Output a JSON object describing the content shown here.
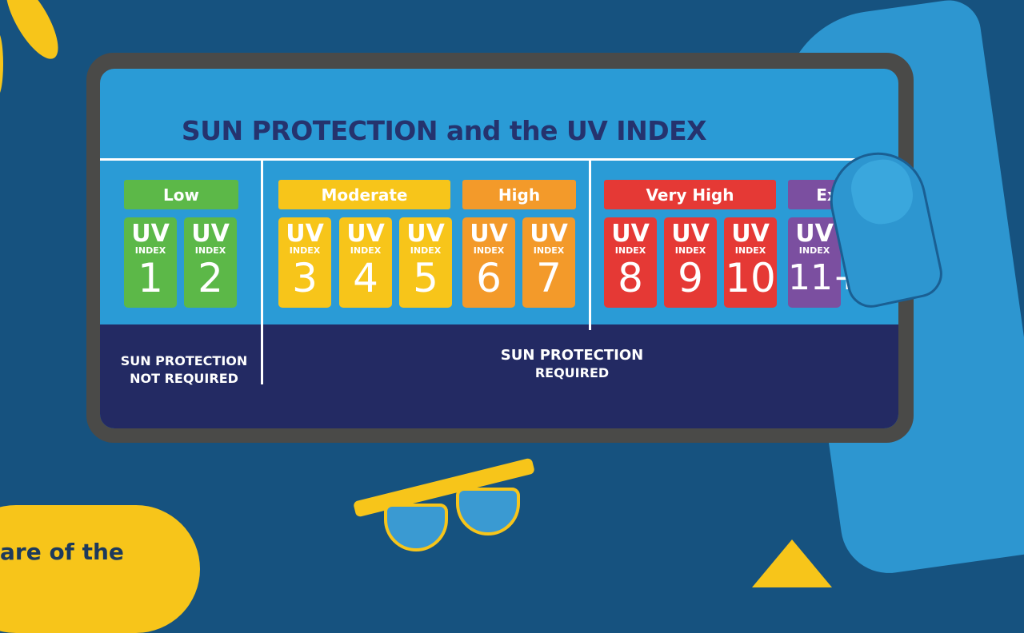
{
  "title": "SUN PROTECTION and the UV INDEX",
  "tile_uv": "UV",
  "tile_index": "INDEX",
  "categories": [
    {
      "label": "Low",
      "color": "#5cb848",
      "values": [
        "1",
        "2"
      ]
    },
    {
      "label": "Moderate",
      "color": "#f7c51a",
      "values": [
        "3",
        "4",
        "5"
      ]
    },
    {
      "label": "High",
      "color": "#f39a2a",
      "values": [
        "6",
        "7"
      ]
    },
    {
      "label": "Very High",
      "color": "#e53935",
      "values": [
        "8",
        "9",
        "10"
      ]
    },
    {
      "label": "Extre",
      "color": "#7b4fa0",
      "values": [
        "11+"
      ]
    }
  ],
  "not_required": {
    "line1": "SUN PROTECTION",
    "line2": "NOT REQUIRED"
  },
  "required": {
    "line1": "SUN PROTECTION",
    "line2": "REQUIRED"
  },
  "bottom_text": "are of the"
}
